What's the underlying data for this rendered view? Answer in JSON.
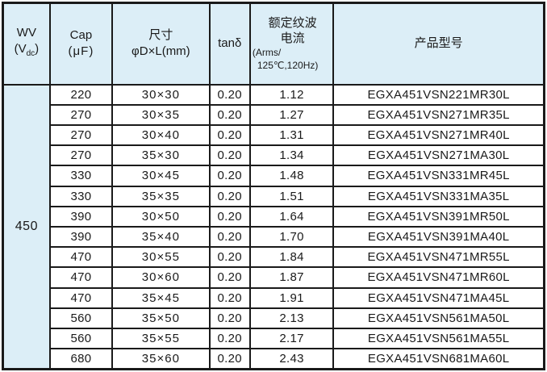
{
  "wv_value": "450",
  "headers": {
    "wv": {
      "line1": "WV",
      "l2_pre": "(V",
      "l2_sub": "dc",
      "l2_post": ")"
    },
    "cap": {
      "line1": "Cap",
      "line2": "(μF)"
    },
    "size": {
      "line1": "尺寸",
      "line2": "φD×L(mm)"
    },
    "tan": "tanδ",
    "ripple": {
      "line1": "额定纹波",
      "line2": "电流",
      "line3": "(Arms/",
      "line4": "125℃,120Hz)"
    },
    "model": "产品型号"
  },
  "rows": [
    {
      "cap": "220",
      "size": "30×30",
      "tan": "0.20",
      "ripple": "1.12",
      "model": "EGXA451VSN221MR30L"
    },
    {
      "cap": "270",
      "size": "30×35",
      "tan": "0.20",
      "ripple": "1.27",
      "model": "EGXA451VSN271MR35L"
    },
    {
      "cap": "270",
      "size": "30×40",
      "tan": "0.20",
      "ripple": "1.31",
      "model": "EGXA451VSN271MR40L"
    },
    {
      "cap": "270",
      "size": "35×30",
      "tan": "0.20",
      "ripple": "1.34",
      "model": "EGXA451VSN271MA30L"
    },
    {
      "cap": "330",
      "size": "30×45",
      "tan": "0.20",
      "ripple": "1.48",
      "model": "EGXA451VSN331MR45L"
    },
    {
      "cap": "330",
      "size": "35×35",
      "tan": "0.20",
      "ripple": "1.51",
      "model": "EGXA451VSN331MA35L"
    },
    {
      "cap": "390",
      "size": "30×50",
      "tan": "0.20",
      "ripple": "1.64",
      "model": "EGXA451VSN391MR50L"
    },
    {
      "cap": "390",
      "size": "35×40",
      "tan": "0.20",
      "ripple": "1.70",
      "model": "EGXA451VSN391MA40L"
    },
    {
      "cap": "470",
      "size": "30×55",
      "tan": "0.20",
      "ripple": "1.84",
      "model": "EGXA451VSN471MR55L"
    },
    {
      "cap": "470",
      "size": "30×60",
      "tan": "0.20",
      "ripple": "1.87",
      "model": "EGXA451VSN471MR60L"
    },
    {
      "cap": "470",
      "size": "35×45",
      "tan": "0.20",
      "ripple": "1.91",
      "model": "EGXA451VSN471MA45L"
    },
    {
      "cap": "560",
      "size": "35×50",
      "tan": "0.20",
      "ripple": "2.13",
      "model": "EGXA451VSN561MA50L"
    },
    {
      "cap": "560",
      "size": "35×55",
      "tan": "0.20",
      "ripple": "2.17",
      "model": "EGXA451VSN561MA55L"
    },
    {
      "cap": "680",
      "size": "35×60",
      "tan": "0.20",
      "ripple": "2.43",
      "model": "EGXA451VSN681MA60L"
    }
  ],
  "colors": {
    "header_bg": "#dceef7",
    "border": "#1a1a1a",
    "text": "#1a1a1a",
    "cell_bg": "#ffffff"
  }
}
